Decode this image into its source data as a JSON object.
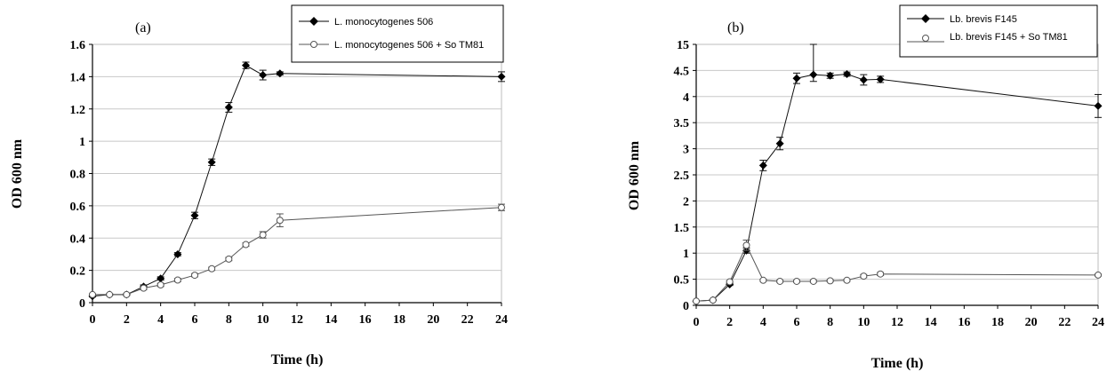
{
  "chart_data": [
    {
      "type": "line",
      "panel_label": "(a)",
      "xlabel": "Time (h)",
      "ylabel": "OD 600 nm",
      "xlim": [
        0,
        24
      ],
      "ylim": [
        0,
        1.6
      ],
      "x_ticks": [
        "0",
        "2",
        "4",
        "6",
        "8",
        "10",
        "12",
        "14",
        "16",
        "18",
        "20",
        "22",
        "24"
      ],
      "y_ticks": [
        "0",
        "0.2",
        "0.4",
        "0.6",
        "0.8",
        "1",
        "1.2",
        "1.4",
        "1.6"
      ],
      "grid": "horizontal",
      "legend_position": "top-right",
      "series": [
        {
          "name": "L. monocytogenes 506",
          "marker": "filled-diamond",
          "x": [
            0,
            1,
            2,
            3,
            4,
            5,
            6,
            7,
            8,
            9,
            10,
            11,
            24
          ],
          "y": [
            0.04,
            0.05,
            0.05,
            0.1,
            0.15,
            0.3,
            0.54,
            0.87,
            1.21,
            1.47,
            1.41,
            1.42,
            1.4
          ],
          "err": [
            0.005,
            0.005,
            0.005,
            0.01,
            0.01,
            0.01,
            0.02,
            0.02,
            0.03,
            0.02,
            0.03,
            0.01,
            0.03
          ]
        },
        {
          "name": "L. monocytogenes 506 + So TM81",
          "marker": "open-circle",
          "x": [
            0,
            1,
            2,
            3,
            4,
            5,
            6,
            7,
            8,
            9,
            10,
            11,
            24
          ],
          "y": [
            0.05,
            0.05,
            0.05,
            0.09,
            0.11,
            0.14,
            0.17,
            0.21,
            0.27,
            0.36,
            0.42,
            0.51,
            0.59
          ],
          "err": [
            0.005,
            0.005,
            0.005,
            0.01,
            0.01,
            0.01,
            0.01,
            0.01,
            0.01,
            0.01,
            0.02,
            0.04,
            0.02
          ]
        }
      ]
    },
    {
      "type": "line",
      "panel_label": "(b)",
      "xlabel": "Time (h)",
      "ylabel": "OD 600 nm",
      "xlim": [
        0,
        24
      ],
      "ylim": [
        0,
        15
      ],
      "y_break": {
        "below": 4.5,
        "above": 15
      },
      "x_ticks": [
        "0",
        "2",
        "4",
        "6",
        "8",
        "10",
        "12",
        "14",
        "16",
        "18",
        "20",
        "22",
        "24"
      ],
      "y_ticks": [
        "0",
        "0.5",
        "1",
        "1.5",
        "2",
        "2.5",
        "3",
        "3.5",
        "4",
        "4.5",
        "15"
      ],
      "grid": "horizontal",
      "legend_position": "top-right",
      "series": [
        {
          "name": "Lb. brevis F145",
          "marker": "filled-diamond",
          "x": [
            0,
            1,
            2,
            3,
            4,
            5,
            6,
            7,
            8,
            9,
            10,
            11,
            24
          ],
          "y": [
            0.08,
            0.1,
            0.4,
            1.05,
            2.68,
            3.1,
            4.35,
            4.42,
            4.4,
            4.43,
            4.32,
            4.33,
            3.82
          ],
          "err": [
            0.01,
            0.01,
            0.02,
            0.05,
            0.1,
            0.12,
            0.1,
            0.13,
            0.05,
            0.04,
            0.1,
            0.06,
            0.22
          ]
        },
        {
          "name": "Lb. brevis F145 + So TM81",
          "marker": "open-circle",
          "x": [
            0,
            1,
            2,
            3,
            4,
            5,
            6,
            7,
            8,
            9,
            10,
            11,
            24
          ],
          "y": [
            0.08,
            0.1,
            0.45,
            1.15,
            0.48,
            0.46,
            0.46,
            0.46,
            0.47,
            0.48,
            0.56,
            0.6,
            0.58
          ],
          "err": [
            0.01,
            0.01,
            0.02,
            0.1,
            0.02,
            0.02,
            0.02,
            0.02,
            0.02,
            0.02,
            0.03,
            0.03,
            0.02
          ]
        }
      ]
    }
  ]
}
